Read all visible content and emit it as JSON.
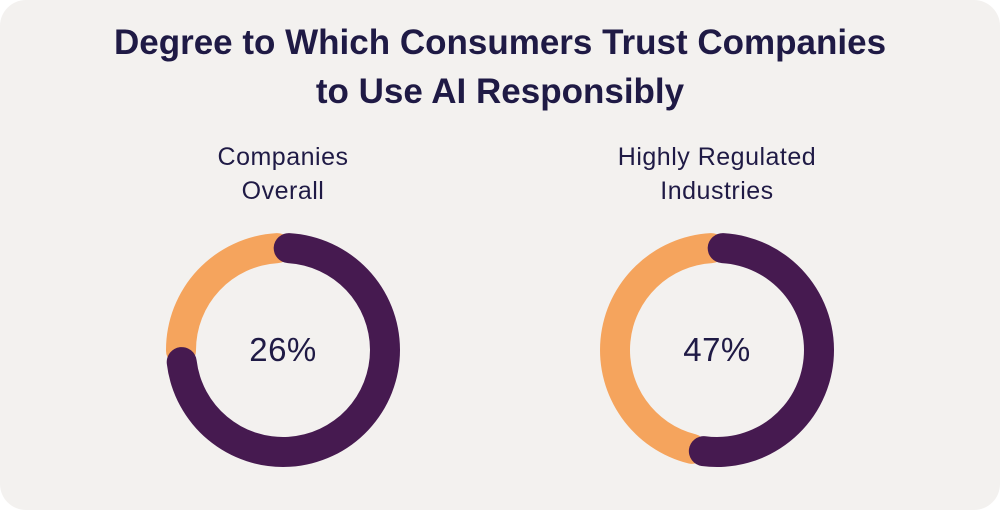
{
  "header": {
    "title_line1": "Degree to Which Consumers Trust Companies",
    "title_line2": "to Use AI Responsibly"
  },
  "colors": {
    "trust": "#f5a45d",
    "remainder": "#461a50",
    "background": "#f3f1ef",
    "text": "#1f1a45"
  },
  "chart_data": [
    {
      "type": "pie",
      "title": "Companies Overall",
      "title_lines": [
        "Companies",
        "Overall"
      ],
      "center_label": "26%",
      "values": [
        26,
        74
      ]
    },
    {
      "type": "pie",
      "title": "Highly Regulated Industries",
      "title_lines": [
        "Highly Regulated",
        "Industries"
      ],
      "center_label": "47%",
      "values": [
        47,
        53
      ]
    }
  ]
}
